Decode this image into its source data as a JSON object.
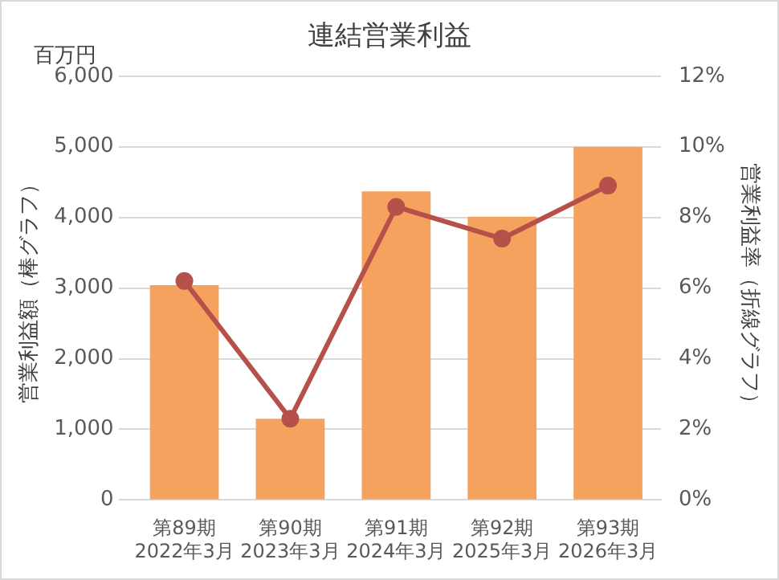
{
  "chart_data": {
    "type": "bar",
    "title": "連結営業利益",
    "categories": [
      "第89期\n2022年3月",
      "第90期\n2023年3月",
      "第91期\n2024年3月",
      "第92期\n2025年3月",
      "第93期\n2026年3月"
    ],
    "series": [
      {
        "color": "#f5a25e",
        "values": [
          3040,
          1150,
          4370,
          4010,
          5000
        ]
      },
      {
        "type": "line",
        "axis": "y2",
        "color": "#b5504a",
        "values": [
          6.2,
          2.3,
          8.3,
          7.4,
          8.9
        ]
      }
    ],
    "ylabel": "営業利益額（棒グラフ）",
    "y2label": "営業利益率（折線グラフ）",
    "annotations": [
      "百万円"
    ],
    "ylim": [
      0,
      6000
    ],
    "yticks": [
      0,
      {
        "value": 1000,
        "label": "1,000"
      },
      {
        "value": 2000,
        "label": "2,000"
      },
      {
        "value": 3000,
        "label": "3,000"
      },
      {
        "value": 4000,
        "label": "4,000"
      },
      {
        "value": 5000,
        "label": "5,000"
      },
      {
        "value": 6000,
        "label": "6,000"
      }
    ],
    "y2lim": [
      0,
      12
    ],
    "y2ticks": [
      {
        "value": 0,
        "label": "0%"
      },
      {
        "value": 2,
        "label": "2%"
      },
      {
        "value": 4,
        "label": "4%"
      },
      {
        "value": 6,
        "label": "6%"
      },
      {
        "value": 8,
        "label": "8%"
      },
      {
        "value": 10,
        "label": "10%"
      },
      {
        "value": 12,
        "label": "12%"
      }
    ],
    "grid": "y",
    "legend": false,
    "marker": "circle"
  }
}
